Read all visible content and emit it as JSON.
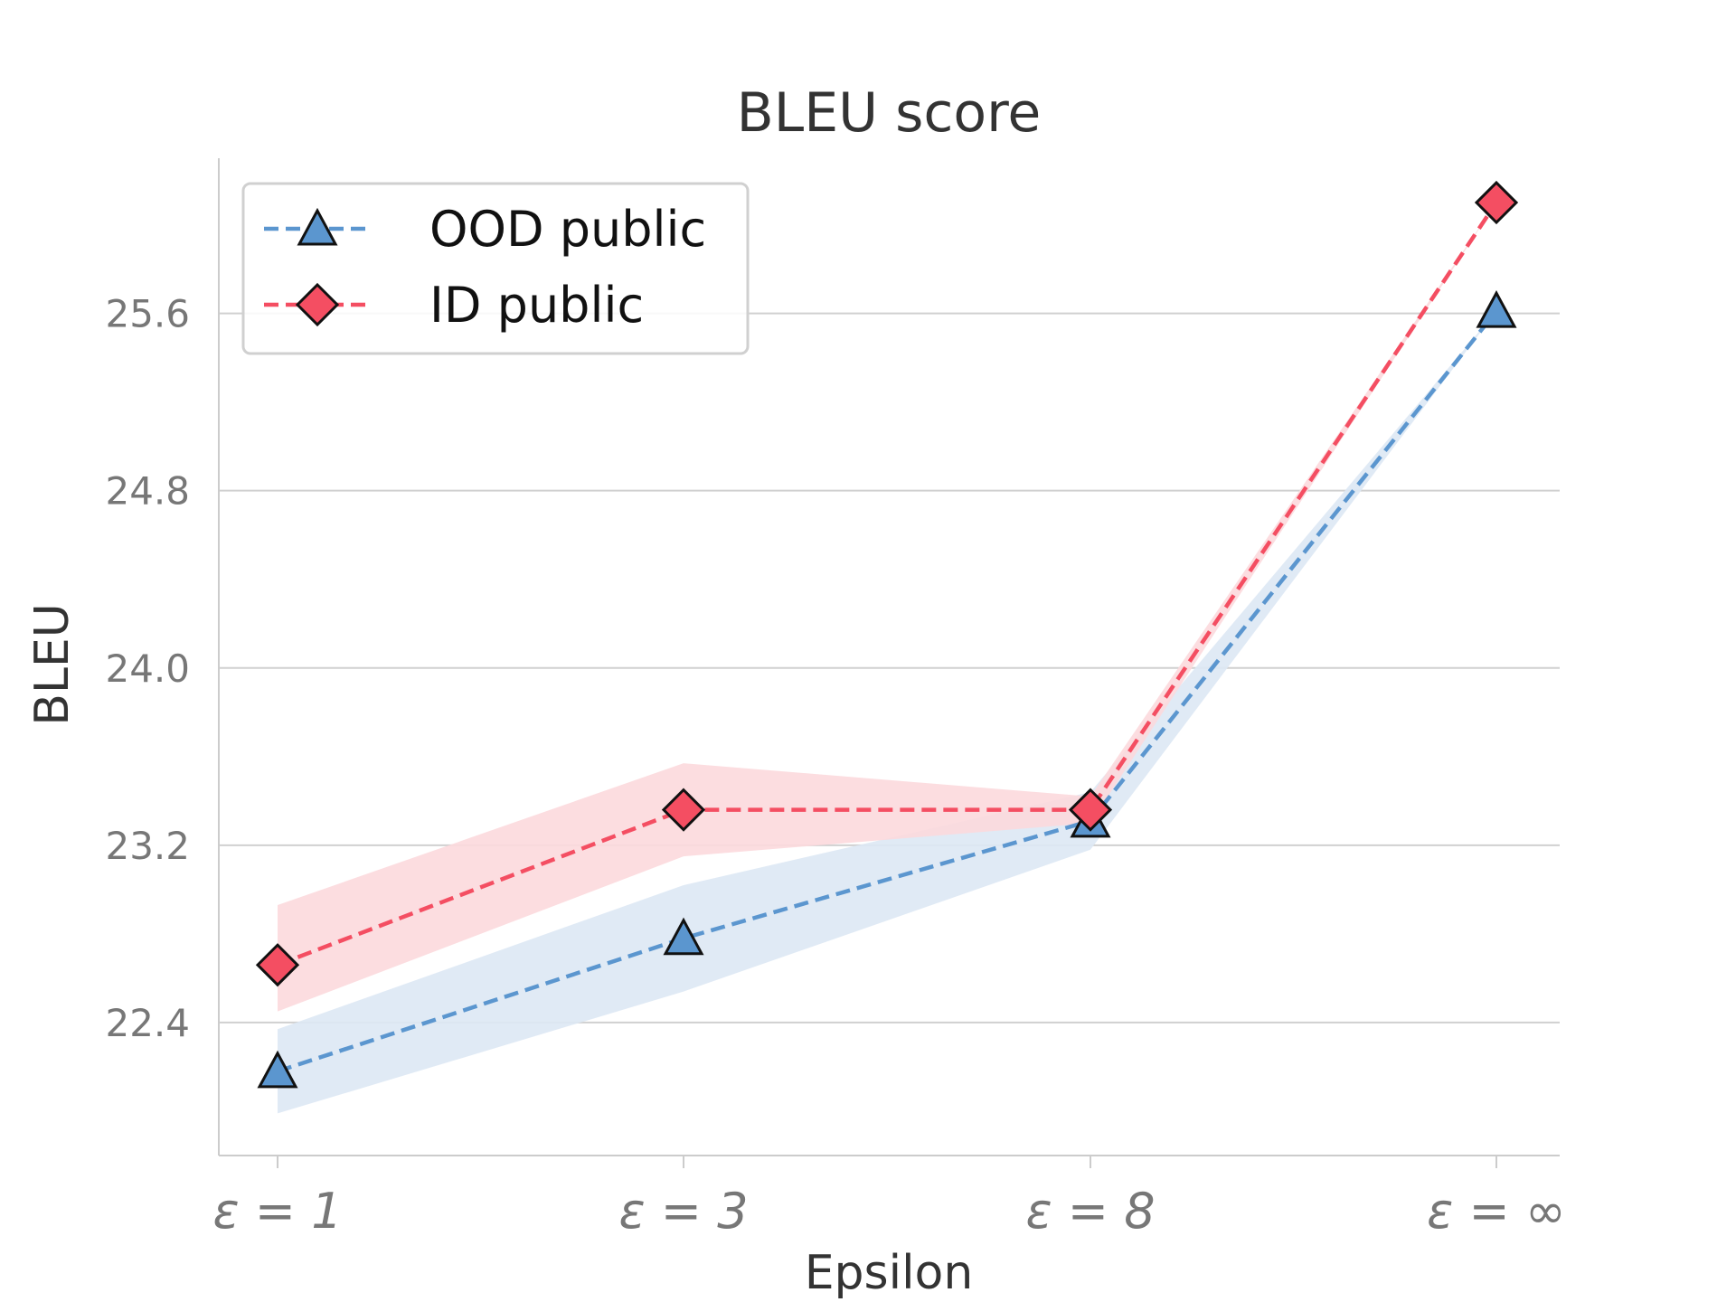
{
  "chart_data": {
    "type": "line",
    "title": "BLEU score",
    "xlabel": "Epsilon",
    "ylabel": "BLEU",
    "categories": [
      "ε = 1",
      "ε = 3",
      "ε = 8",
      "ε = ∞"
    ],
    "yticks": [
      "22.4",
      "23.2",
      "24.0",
      "24.8",
      "25.6"
    ],
    "ylim": [
      21.8,
      26.3
    ],
    "grid": "horizontal",
    "legend_position": "top-left",
    "series": [
      {
        "name": "OOD public",
        "color": "#5b96cf",
        "band_color": "#dde8f4",
        "marker": "triangle",
        "values": [
          22.18,
          22.78,
          23.31,
          25.61
        ],
        "lower": [
          21.99,
          22.54,
          23.18,
          25.61
        ],
        "upper": [
          22.37,
          23.02,
          23.44,
          25.61
        ]
      },
      {
        "name": "ID public",
        "color": "#f44e62",
        "band_color": "#fcd9dd",
        "marker": "diamond",
        "values": [
          22.66,
          23.36,
          23.36,
          26.1
        ],
        "lower": [
          22.45,
          23.15,
          23.3,
          26.1
        ],
        "upper": [
          22.93,
          23.57,
          23.42,
          26.1
        ]
      }
    ]
  }
}
